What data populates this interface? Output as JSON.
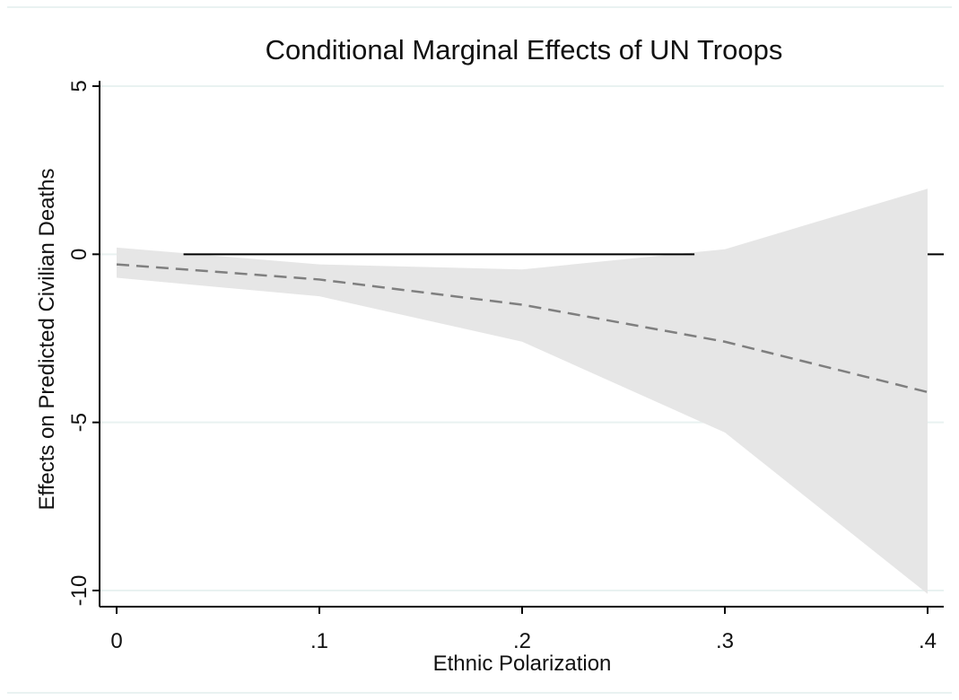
{
  "chart_data": {
    "type": "line",
    "title": "Conditional Marginal Effects of UN Troops",
    "xlabel": "Ethnic Polarization",
    "ylabel": "Effects on Predicted Civilian Deaths",
    "xlim": [
      0,
      0.4
    ],
    "ylim": [
      -10,
      5
    ],
    "x_ticks": [
      0,
      0.1,
      0.2,
      0.3,
      0.4
    ],
    "x_tick_labels": [
      "0",
      ".1",
      ".2",
      ".3",
      ".4"
    ],
    "y_ticks": [
      -10,
      -5,
      0,
      5
    ],
    "y_tick_labels": [
      "-10",
      "-5",
      "0",
      "5"
    ],
    "grid": true,
    "reference_line_y": 0,
    "series": [
      {
        "style": "dashed",
        "color": "#7f7f7f",
        "x": [
          0,
          0.1,
          0.2,
          0.3,
          0.4
        ],
        "y": [
          -0.3,
          -0.75,
          -1.5,
          -2.6,
          -4.1
        ],
        "ci_lower": [
          -0.7,
          -1.25,
          -2.6,
          -5.3,
          -10.1
        ],
        "ci_upper": [
          0.2,
          -0.3,
          -0.45,
          0.15,
          1.95
        ]
      }
    ],
    "colors": {
      "band": "#e6e6e6",
      "reference": "#000000",
      "grid": "#e9f2f1",
      "axis": "#000000"
    }
  }
}
